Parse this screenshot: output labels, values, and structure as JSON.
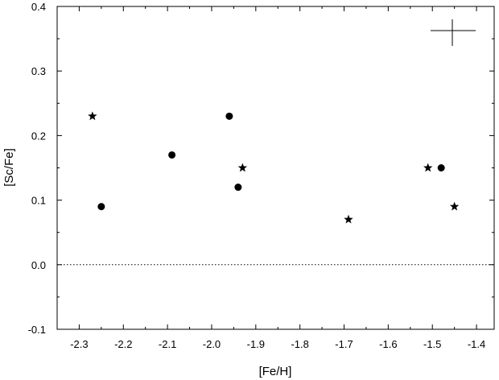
{
  "chart_data": {
    "type": "scatter",
    "x_label": "[Fe/H]",
    "y_label": "[Sc/Fe]",
    "xlim": [
      -2.35,
      -1.36
    ],
    "ylim": [
      -0.1,
      0.4
    ],
    "xticks": [
      -2.3,
      -2.2,
      -2.1,
      {
        "value": -2.0,
        "label": "-2.0"
      },
      -1.9,
      -1.8,
      -1.7,
      -1.6,
      -1.5,
      -1.4
    ],
    "yticks": [
      -0.1,
      {
        "value": 0.0,
        "label": "0.0"
      },
      0.1,
      0.2,
      0.3,
      0.4
    ],
    "series": [
      {
        "marker": "circle",
        "color": "#000000",
        "x": [
          -2.25,
          -2.09,
          -1.96,
          -1.94,
          -1.48
        ],
        "values": [
          0.09,
          0.17,
          0.23,
          0.12,
          0.15
        ]
      },
      {
        "marker": "star",
        "color": "#000000",
        "x": [
          -2.27,
          -1.93,
          -1.69,
          -1.51,
          -1.45
        ],
        "values": [
          0.23,
          0.15,
          0.07,
          0.15,
          0.09
        ]
      }
    ]
  }
}
